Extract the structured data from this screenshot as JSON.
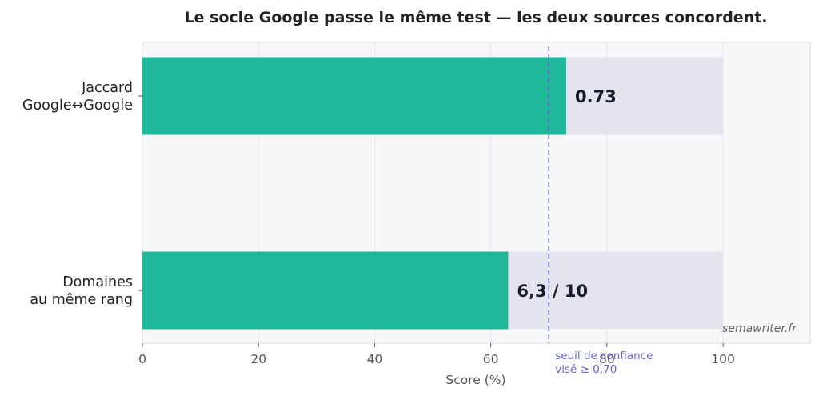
{
  "chart_data": {
    "type": "bar",
    "orientation": "horizontal",
    "title": "Le socle Google passe le même test — les deux sources concordent.",
    "xlabel": "Score (%)",
    "ylabel": "",
    "xlim": [
      0,
      115
    ],
    "xticks": [
      "0",
      "20",
      "40",
      "60",
      "80",
      "100"
    ],
    "categories": [
      [
        "Jaccard",
        "Google↔Google"
      ],
      [
        "Domaines",
        "au même rang"
      ]
    ],
    "values": [
      73,
      63
    ],
    "background_values": [
      100,
      100
    ],
    "value_labels": [
      "0.73",
      "6,3 / 10"
    ],
    "threshold": {
      "value": 70,
      "label_lines": [
        "seuil de confiance",
        "visé ≥ 0,70"
      ],
      "color": "#6a67ce"
    },
    "grid": true,
    "colors": {
      "bar": "#1fb89a",
      "background_bar": "#e4e4ef",
      "plot_bg": "#f6f8fa"
    },
    "watermark": "semawriter.fr"
  }
}
